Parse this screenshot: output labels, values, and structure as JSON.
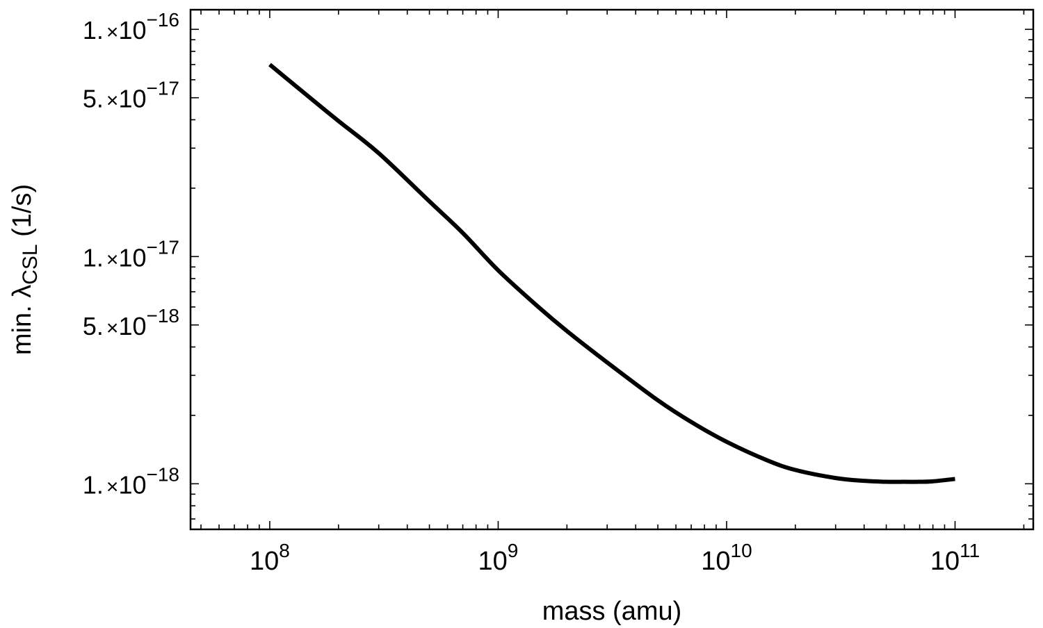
{
  "chart_data": {
    "type": "line",
    "xscale": "log",
    "yscale": "log",
    "xlabel": "mass (amu)",
    "ylabel_main": "min. λ",
    "ylabel_sub": "CSL",
    "ylabel_unit": " (1/s)",
    "xlim": [
      45000000.0,
      220000000000.0
    ],
    "ylim": [
      6.3e-19,
      1.22e-16
    ],
    "xticks": [
      {
        "value": 100000000.0,
        "base": "10",
        "exp": "8"
      },
      {
        "value": 1000000000.0,
        "base": "10",
        "exp": "9"
      },
      {
        "value": 10000000000.0,
        "base": "10",
        "exp": "10"
      },
      {
        "value": 100000000000.0,
        "base": "10",
        "exp": "11"
      }
    ],
    "yticks": [
      {
        "value": 1e-16,
        "mant": "1.",
        "times": "×",
        "base": "10",
        "exp": "−16"
      },
      {
        "value": 5e-17,
        "mant": "5.",
        "times": "×",
        "base": "10",
        "exp": "−17"
      },
      {
        "value": 1e-17,
        "mant": "1.",
        "times": "×",
        "base": "10",
        "exp": "−17"
      },
      {
        "value": 5e-18,
        "mant": "5.",
        "times": "×",
        "base": "10",
        "exp": "−18"
      },
      {
        "value": 1e-18,
        "mant": "1.",
        "times": "×",
        "base": "10",
        "exp": "−18"
      }
    ],
    "grid": false,
    "series": [
      {
        "color": "#000000",
        "x": [
          100000000.0,
          150000000.0,
          200000000.0,
          300000000.0,
          500000000.0,
          700000000.0,
          1000000000.0,
          1500000000.0,
          2000000000.0,
          3000000000.0,
          5000000000.0,
          7000000000.0,
          10000000000.0,
          15000000000.0,
          20000000000.0,
          30000000000.0,
          40000000000.0,
          50000000000.0,
          60000000000.0,
          70000000000.0,
          80000000000.0,
          100000000000.0
        ],
        "y": [
          7e-17,
          5e-17,
          3.95e-17,
          2.85e-17,
          1.75e-17,
          1.27e-17,
          8.7e-18,
          6e-18,
          4.7e-18,
          3.42e-18,
          2.33e-18,
          1.87e-18,
          1.53e-18,
          1.27e-18,
          1.15e-18,
          1.06e-18,
          1.03e-18,
          1.02e-18,
          1.02e-18,
          1.02e-18,
          1.025e-18,
          1.05e-18
        ]
      }
    ]
  }
}
